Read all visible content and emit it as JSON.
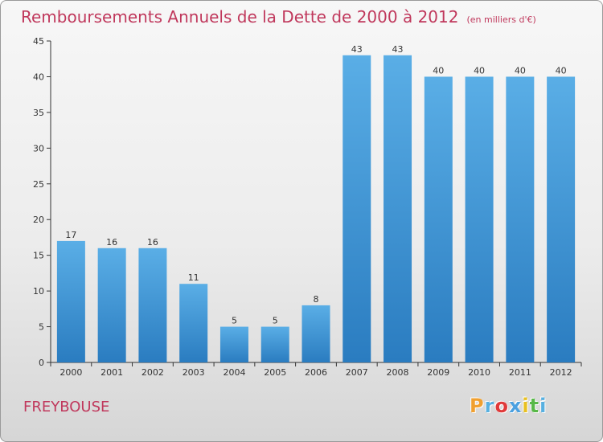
{
  "title": "Remboursements Annuels de la Dette de 2000 à 2012",
  "subtitle": "(en milliers d'€)",
  "commune": "FREYBOUSE",
  "logo": {
    "letters": [
      "P",
      "r",
      "o",
      "x",
      "i",
      "t",
      "i"
    ],
    "colors": [
      "#f0a030",
      "#58b0e0",
      "#e03a3a",
      "#4aa0e0",
      "#e8c020",
      "#58b848",
      "#58b0e0"
    ]
  },
  "colors": {
    "title": "#c0385c",
    "bar_top": "#5aaee6",
    "bar_bottom": "#2a7cc0"
  },
  "chart_data": {
    "type": "bar",
    "title": "Remboursements Annuels de la Dette de 2000 à 2012",
    "subtitle": "(en milliers d'€)",
    "categories": [
      "2000",
      "2001",
      "2002",
      "2003",
      "2004",
      "2005",
      "2006",
      "2007",
      "2008",
      "2009",
      "2010",
      "2011",
      "2012"
    ],
    "values": [
      17,
      16,
      16,
      11,
      5,
      5,
      8,
      43,
      43,
      40,
      40,
      40,
      40
    ],
    "ylim": [
      0,
      45
    ],
    "yticks": [
      0,
      5,
      10,
      15,
      20,
      25,
      30,
      35,
      40,
      45
    ],
    "grid": false,
    "legend": "none"
  }
}
